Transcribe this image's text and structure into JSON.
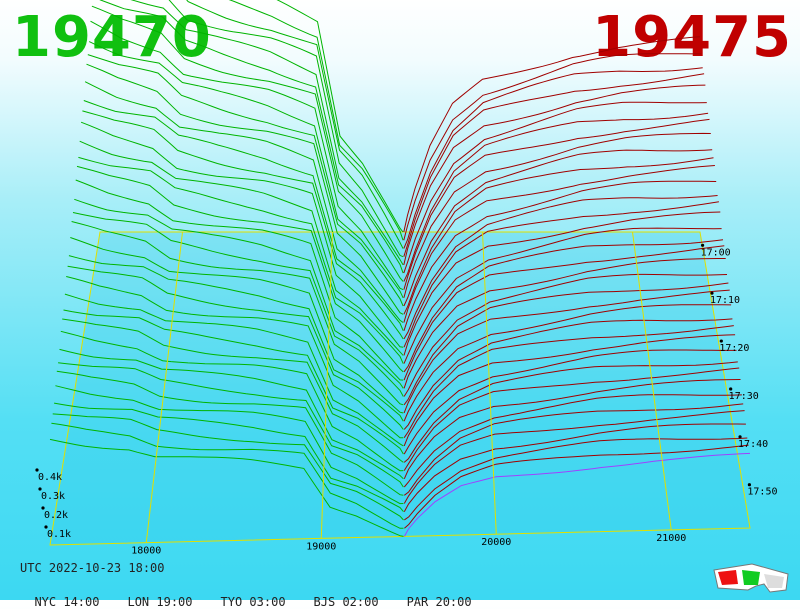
{
  "header": {
    "bid_price": "19470",
    "ask_price": "19475",
    "bid_color": "#10c010",
    "ask_color": "#c00000"
  },
  "footer": {
    "utc_label": "UTC 2022-10-23 18:00",
    "zones": [
      "NYC 14:00",
      "LON 19:00",
      "TYO 03:00",
      "BJS 02:00",
      "PAR 20:00"
    ]
  },
  "icons": {
    "stereo": "3d-glasses-icon"
  },
  "chart_data": {
    "type": "area",
    "x_ticks": [
      "18000",
      "19000",
      "20000",
      "21000"
    ],
    "depth_ticks": [
      "0.1k",
      "0.2k",
      "0.3k",
      "0.4k"
    ],
    "time_ticks": [
      "17:00",
      "17:10",
      "17:20",
      "17:30",
      "17:40",
      "17:50"
    ],
    "x_range": [
      17450,
      21450
    ],
    "center_price": 19472.5,
    "bid_color": "#00b400",
    "ask_color": "#a00000",
    "latest_ask_color": "#a040ff",
    "grid_color": "#e0e000",
    "snapshots": 38,
    "bid_depth_levels": [
      {
        "price": 17450,
        "depth": 0.95
      },
      {
        "price": 17650,
        "depth": 0.9
      },
      {
        "price": 17900,
        "depth": 0.86
      },
      {
        "price": 18050,
        "depth": 0.78
      },
      {
        "price": 18300,
        "depth": 0.74
      },
      {
        "price": 18600,
        "depth": 0.7
      },
      {
        "price": 18900,
        "depth": 0.64
      },
      {
        "price": 19050,
        "depth": 0.3
      },
      {
        "price": 19200,
        "depth": 0.22
      },
      {
        "price": 19350,
        "depth": 0.1
      },
      {
        "price": 19470,
        "depth": 0.0
      }
    ],
    "ask_depth_levels": [
      {
        "price": 19475,
        "depth": 0.0
      },
      {
        "price": 19550,
        "depth": 0.12
      },
      {
        "price": 19650,
        "depth": 0.25
      },
      {
        "price": 19800,
        "depth": 0.38
      },
      {
        "price": 20000,
        "depth": 0.46
      },
      {
        "price": 20300,
        "depth": 0.5
      },
      {
        "price": 20600,
        "depth": 0.54
      },
      {
        "price": 20900,
        "depth": 0.56
      },
      {
        "price": 21200,
        "depth": 0.57
      },
      {
        "price": 21450,
        "depth": 0.58
      }
    ]
  }
}
